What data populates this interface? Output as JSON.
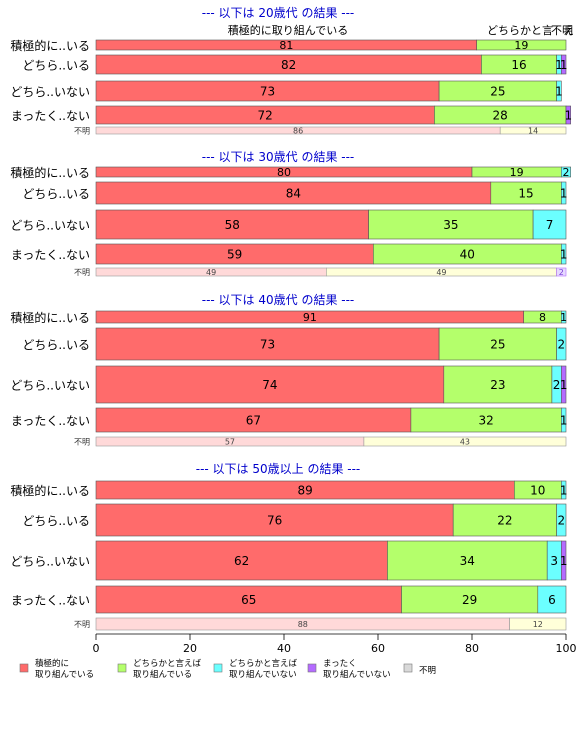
{
  "chart_data": {
    "type": "bar",
    "stacked": true,
    "orientation": "horizontal",
    "xlim": [
      0,
      100
    ],
    "xticks": [
      0,
      20,
      40,
      60,
      80,
      100
    ],
    "series": [
      {
        "name": "積極的に\n取り組んでいる",
        "color": "#ff6b6b"
      },
      {
        "name": "どちらかと言えば\n取り組んでいる",
        "color": "#b4ff6b"
      },
      {
        "name": "どちらかと言えば\n取り組んでいない",
        "color": "#6bffff"
      },
      {
        "name": "まったく\n取り組んでいない",
        "color": "#b46bff"
      },
      {
        "name": "不明",
        "color": "#d9d9d9"
      }
    ],
    "top_labels": [
      "積極的に取り組んでいる",
      "どちらかと言",
      "不明",
      "え"
    ],
    "panels": [
      {
        "title": "--- 以下は 20歳代 の結果 ---",
        "rows": [
          {
            "label": "積極的に..いる",
            "values": [
              81,
              19,
              0,
              0,
              0
            ]
          },
          {
            "label": "どちら..いる",
            "values": [
              82,
              16,
              1,
              1,
              0
            ]
          },
          {
            "label": "どちら..いない",
            "values": [
              73,
              25,
              1,
              0,
              0
            ]
          },
          {
            "label": "まったく..ない",
            "values": [
              72,
              28,
              0,
              1,
              0
            ]
          }
        ],
        "fumei": {
          "label": "不明",
          "values": [
            86,
            14
          ]
        }
      },
      {
        "title": "--- 以下は 30歳代 の結果 ---",
        "rows": [
          {
            "label": "積極的に..いる",
            "values": [
              80,
              19,
              2,
              0,
              0
            ]
          },
          {
            "label": "どちら..いる",
            "values": [
              84,
              15,
              1,
              0,
              0
            ]
          },
          {
            "label": "どちら..いない",
            "values": [
              58,
              35,
              7,
              0,
              0
            ]
          },
          {
            "label": "まったく..ない",
            "values": [
              59,
              40,
              1,
              0,
              0
            ]
          }
        ],
        "fumei": {
          "label": "不明",
          "values": [
            49,
            49,
            0,
            2
          ]
        }
      },
      {
        "title": "--- 以下は 40歳代 の結果 ---",
        "rows": [
          {
            "label": "積極的に..いる",
            "values": [
              91,
              8,
              1,
              0,
              0
            ]
          },
          {
            "label": "どちら..いる",
            "values": [
              73,
              25,
              2,
              0,
              0
            ]
          },
          {
            "label": "どちら..いない",
            "values": [
              74,
              23,
              2,
              1,
              0
            ]
          },
          {
            "label": "まったく..ない",
            "values": [
              67,
              32,
              1,
              0,
              0
            ]
          }
        ],
        "fumei": {
          "label": "不明",
          "values": [
            57,
            43
          ]
        }
      },
      {
        "title": "--- 以下は 50歳以上 の結果 ---",
        "rows": [
          {
            "label": "積極的に..いる",
            "values": [
              89,
              10,
              1,
              0,
              0
            ]
          },
          {
            "label": "どちら..いる",
            "values": [
              76,
              22,
              2,
              0,
              0
            ]
          },
          {
            "label": "どちら..いない",
            "values": [
              62,
              34,
              3,
              1,
              0
            ]
          },
          {
            "label": "まったく..ない",
            "values": [
              65,
              29,
              6,
              0,
              0
            ]
          }
        ],
        "fumei": {
          "label": "不明",
          "values": [
            88,
            12
          ]
        }
      }
    ]
  }
}
